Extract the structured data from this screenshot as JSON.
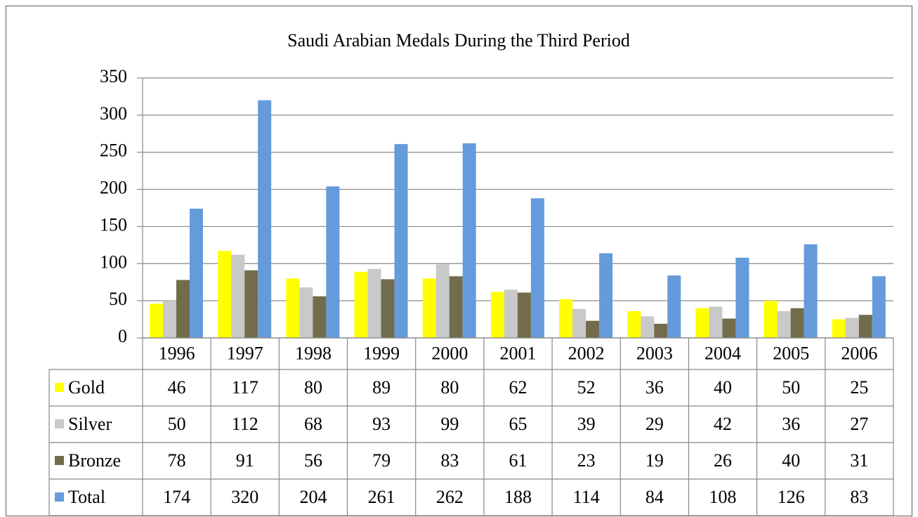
{
  "chart_data": {
    "type": "bar",
    "title": "Saudi Arabian Medals During the Third Period",
    "categories": [
      "1996",
      "1997",
      "1998",
      "1999",
      "2000",
      "2001",
      "2002",
      "2003",
      "2004",
      "2005",
      "2006"
    ],
    "series": [
      {
        "name": "Gold",
        "color": "#ffff00",
        "values": [
          46,
          117,
          80,
          89,
          80,
          62,
          52,
          36,
          40,
          50,
          25
        ]
      },
      {
        "name": "Silver",
        "color": "#c9c9c9",
        "values": [
          50,
          112,
          68,
          93,
          99,
          65,
          39,
          29,
          42,
          36,
          27
        ]
      },
      {
        "name": "Bronze",
        "color": "#736c4c",
        "values": [
          78,
          91,
          56,
          79,
          83,
          61,
          23,
          19,
          26,
          40,
          31
        ]
      },
      {
        "name": "Total",
        "color": "#659bdb",
        "values": [
          174,
          320,
          204,
          261,
          262,
          188,
          114,
          84,
          108,
          126,
          83
        ]
      }
    ],
    "ylim": [
      0,
      350
    ],
    "yticks": [
      0,
      50,
      100,
      150,
      200,
      250,
      300,
      350
    ],
    "grid": true
  }
}
